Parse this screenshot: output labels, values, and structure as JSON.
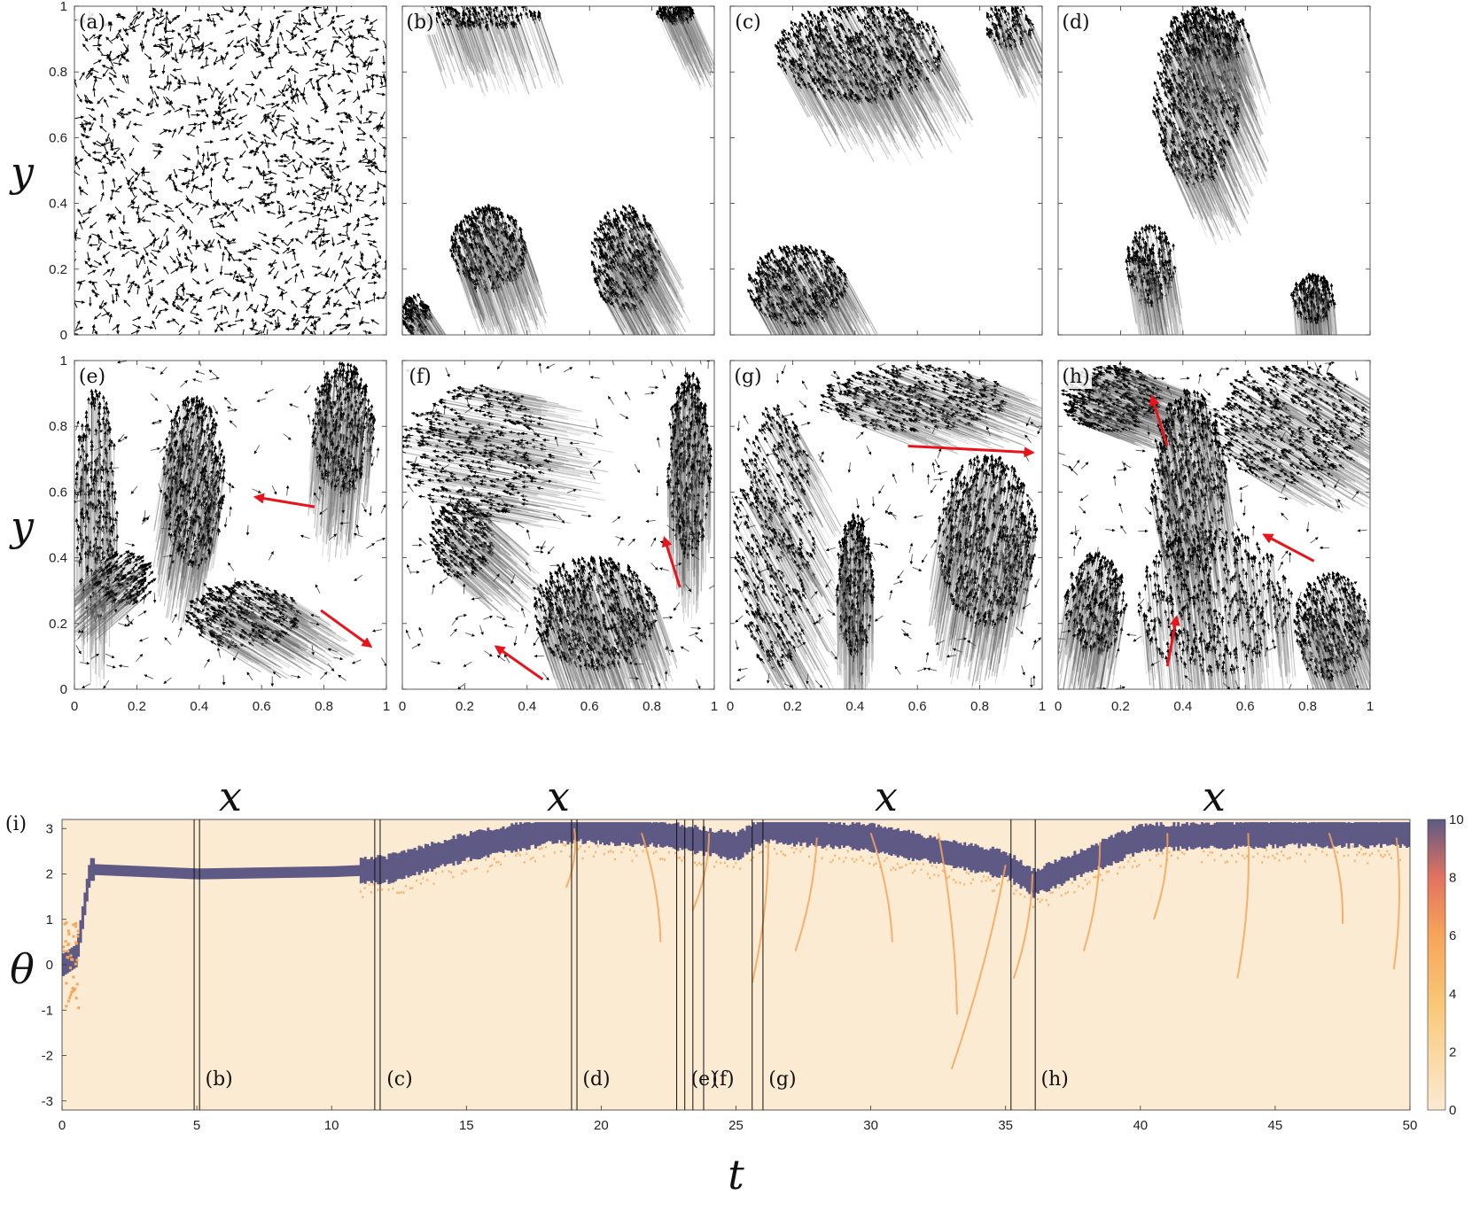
{
  "figure": {
    "panel_labels": [
      "(a)",
      "(b)",
      "(c)",
      "(d)",
      "(e)",
      "(f)",
      "(g)",
      "(h)",
      "(i)"
    ],
    "x_axis_label": "x",
    "y_axis_label": "y",
    "theta_axis_label": "θ",
    "t_axis_label": "t",
    "xy_ticks": [
      "0",
      "0.2",
      "0.4",
      "0.6",
      "0.8",
      "1"
    ],
    "t_ticks": [
      "0",
      "5",
      "10",
      "15",
      "20",
      "25",
      "30",
      "35",
      "40",
      "45",
      "50"
    ],
    "theta_ticks": [
      "3",
      "2",
      "1",
      "0",
      "-1",
      "-2",
      "-3"
    ],
    "colorbar_ticks": [
      "10",
      "8",
      "6",
      "4",
      "2",
      "0"
    ],
    "markers": [
      {
        "label": "(b)",
        "t": [
          4.9,
          5.1
        ]
      },
      {
        "label": "(c)",
        "t": [
          11.6,
          11.8
        ]
      },
      {
        "label": "(d)",
        "t": [
          18.9,
          19.1
        ]
      },
      {
        "label": "(e)",
        "t": [
          22.8,
          23.1
        ]
      },
      {
        "label": "(f)",
        "t": [
          23.4,
          23.8
        ]
      },
      {
        "label": "(g)",
        "t": [
          25.6,
          26.0
        ]
      },
      {
        "label": "(h)",
        "t": [
          35.2,
          36.1
        ]
      }
    ],
    "colors": {
      "heat_low": "#fbebd2",
      "heat_mid": "#f6a55a",
      "heat_high": "#5e5a85",
      "arrow": "#000000",
      "red_arrow": "#e8141b"
    }
  },
  "chart_data": [
    {
      "type": "scatter",
      "panel": "(a)",
      "xlabel": "",
      "ylabel": "y",
      "xlim": [
        0,
        1
      ],
      "ylim": [
        0,
        1
      ],
      "description": "random unit orientations"
    },
    {
      "type": "scatter",
      "panel": "(b)",
      "xlim": [
        0,
        1
      ],
      "ylim": [
        0,
        1
      ]
    },
    {
      "type": "scatter",
      "panel": "(c)",
      "xlim": [
        0,
        1
      ],
      "ylim": [
        0,
        1
      ]
    },
    {
      "type": "scatter",
      "panel": "(d)",
      "xlim": [
        0,
        1
      ],
      "ylim": [
        0,
        1
      ]
    },
    {
      "type": "scatter",
      "panel": "(e)",
      "xlabel": "x",
      "ylabel": "y",
      "xlim": [
        0,
        1
      ],
      "ylim": [
        0,
        1
      ]
    },
    {
      "type": "scatter",
      "panel": "(f)",
      "xlabel": "x",
      "xlim": [
        0,
        1
      ],
      "ylim": [
        0,
        1
      ]
    },
    {
      "type": "scatter",
      "panel": "(g)",
      "xlabel": "x",
      "xlim": [
        0,
        1
      ],
      "ylim": [
        0,
        1
      ]
    },
    {
      "type": "scatter",
      "panel": "(h)",
      "xlabel": "x",
      "xlim": [
        0,
        1
      ],
      "ylim": [
        0,
        1
      ]
    },
    {
      "type": "heatmap",
      "panel": "(i)",
      "xlabel": "t",
      "ylabel": "θ",
      "xlim": [
        0,
        50
      ],
      "ylim": [
        -3.14,
        3.14
      ],
      "colorbar_range": [
        0,
        10
      ],
      "dominant_band": {
        "t": [
          0,
          0.5,
          1,
          3,
          5,
          10,
          12,
          15,
          18,
          19,
          22,
          25,
          26,
          30,
          35,
          36,
          40,
          45,
          50
        ],
        "theta": [
          0,
          0.2,
          2.1,
          2.05,
          2.0,
          2.05,
          2.1,
          2.6,
          2.95,
          3.0,
          2.9,
          2.6,
          3.0,
          2.8,
          2.2,
          1.8,
          2.8,
          2.9,
          2.9
        ]
      }
    }
  ]
}
